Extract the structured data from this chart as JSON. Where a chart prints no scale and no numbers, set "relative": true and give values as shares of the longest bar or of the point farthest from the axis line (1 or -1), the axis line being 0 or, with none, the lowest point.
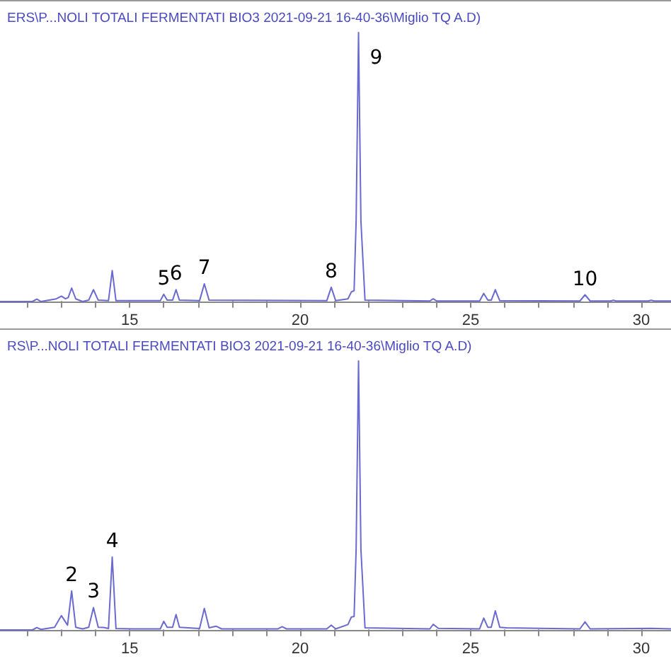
{
  "chart_data": [
    {
      "type": "line",
      "relative": true,
      "title": "ERS\\P...NOLI TOTALI FERMENTATI BIO3 2021-09-21 16-40-36\\Miglio TQ A.D)",
      "xlim": [
        11.2,
        30.87
      ],
      "xticks": [
        {
          "value": 12,
          "label": null
        },
        {
          "value": 13,
          "label": null
        },
        {
          "value": 14,
          "label": null
        },
        15,
        {
          "value": 16,
          "label": null
        },
        {
          "value": 17,
          "label": null
        },
        {
          "value": 18,
          "label": null
        },
        {
          "value": 19,
          "label": null
        },
        20,
        {
          "value": 21,
          "label": null
        },
        {
          "value": 22,
          "label": null
        },
        {
          "value": 23,
          "label": null
        },
        {
          "value": 24,
          "label": null
        },
        25,
        {
          "value": 26,
          "label": null
        },
        {
          "value": 27,
          "label": null
        },
        {
          "value": 28,
          "label": null
        },
        {
          "value": 29,
          "label": null
        },
        30
      ],
      "grid": false,
      "marker": "none",
      "line_style": "solid",
      "series": [
        {
          "color": "#6a6ad0",
          "x": [
            11.2,
            12.15,
            12.28,
            12.4,
            12.85,
            13.0,
            13.12,
            13.2,
            13.3,
            13.42,
            13.62,
            13.8,
            13.94,
            14.08,
            14.38,
            14.49,
            14.6,
            15.1,
            15.9,
            16.0,
            16.1,
            16.26,
            16.36,
            16.46,
            17.05,
            17.19,
            17.33,
            20.78,
            20.91,
            21.04,
            21.4,
            21.5,
            21.58,
            21.64,
            21.71,
            21.78,
            21.9,
            23.8,
            23.9,
            24.0,
            25.26,
            25.38,
            25.5,
            25.6,
            25.72,
            25.85,
            28.2,
            28.35,
            28.5,
            29.1,
            29.18,
            29.26,
            30.2,
            30.29,
            30.38,
            30.87
          ],
          "values": [
            0,
            0,
            0.009,
            0,
            0.01,
            0.02,
            0.01,
            0.015,
            0.05,
            0.01,
            0,
            0.005,
            0.044,
            0.005,
            0.003,
            0.115,
            0.003,
            0.003,
            0.003,
            0.027,
            0.005,
            0.005,
            0.044,
            0.005,
            0.003,
            0.066,
            0.005,
            0.003,
            0.053,
            0.003,
            0.01,
            0.036,
            0.04,
            0.3,
            1,
            0.3,
            0.005,
            0.002,
            0.01,
            0.002,
            0.002,
            0.03,
            0.005,
            0.005,
            0.044,
            0.003,
            0.002,
            0.025,
            0.002,
            0.002,
            0.005,
            0.002,
            0.002,
            0.005,
            0.002,
            0.002
          ]
        }
      ],
      "annotations": [
        {
          "text": "5",
          "x": 16.0,
          "y": 0.027
        },
        {
          "text": "6",
          "x": 16.36,
          "y": 0.044
        },
        {
          "text": "7",
          "x": 17.19,
          "y": 0.066
        },
        {
          "text": "8",
          "x": 20.91,
          "y": 0.053
        },
        {
          "text": "9",
          "x": 21.71,
          "y": 1
        },
        {
          "text": "10",
          "x": 28.35,
          "y": 0.025
        }
      ]
    },
    {
      "type": "line",
      "relative": true,
      "title": "RS\\P...NOLI TOTALI FERMENTATI BIO3 2021-09-21 16-40-36\\Miglio TQ A.D)",
      "xlim": [
        11.2,
        30.87
      ],
      "xticks": [
        {
          "value": 12,
          "label": null
        },
        {
          "value": 13,
          "label": null
        },
        {
          "value": 14,
          "label": null
        },
        15,
        {
          "value": 16,
          "label": null
        },
        {
          "value": 17,
          "label": null
        },
        {
          "value": 18,
          "label": null
        },
        {
          "value": 19,
          "label": null
        },
        20,
        {
          "value": 21,
          "label": null
        },
        {
          "value": 22,
          "label": null
        },
        {
          "value": 23,
          "label": null
        },
        {
          "value": 24,
          "label": null
        },
        25,
        {
          "value": 26,
          "label": null
        },
        {
          "value": 27,
          "label": null
        },
        {
          "value": 28,
          "label": null
        },
        {
          "value": 29,
          "label": null
        },
        30
      ],
      "grid": false,
      "marker": "none",
      "line_style": "solid",
      "series": [
        {
          "color": "#6a6ad0",
          "x": [
            11.2,
            12.15,
            12.28,
            12.4,
            12.8,
            13.0,
            13.18,
            13.3,
            13.42,
            13.62,
            13.8,
            13.94,
            14.08,
            14.24,
            14.38,
            14.49,
            14.6,
            15.1,
            15.9,
            16.0,
            16.1,
            16.26,
            16.36,
            16.46,
            17.05,
            17.19,
            17.33,
            17.53,
            17.7,
            19.35,
            19.47,
            19.6,
            20.78,
            20.91,
            21.04,
            21.4,
            21.5,
            21.58,
            21.64,
            21.71,
            21.78,
            21.9,
            23.8,
            23.9,
            24.05,
            25.26,
            25.38,
            25.5,
            25.6,
            25.72,
            25.85,
            26.05,
            28.2,
            28.35,
            28.5,
            30.29,
            30.87
          ],
          "values": [
            0,
            0,
            0.009,
            0.002,
            0.01,
            0.053,
            0.018,
            0.145,
            0.01,
            0.004,
            0.01,
            0.083,
            0.01,
            0.009,
            0.005,
            0.271,
            0.005,
            0.004,
            0.004,
            0.032,
            0.01,
            0.01,
            0.057,
            0.01,
            0.005,
            0.08,
            0.008,
            0.014,
            0.004,
            0.004,
            0.012,
            0.004,
            0.004,
            0.018,
            0.004,
            0.02,
            0.048,
            0.05,
            0.3,
            1,
            0.3,
            0.008,
            0.004,
            0.021,
            0.006,
            0.004,
            0.044,
            0.01,
            0.01,
            0.071,
            0.01,
            0.008,
            0.004,
            0.03,
            0.004,
            0.006,
            0.004
          ]
        }
      ],
      "annotations": [
        {
          "text": "2",
          "x": 13.3,
          "y": 0.145
        },
        {
          "text": "3",
          "x": 13.94,
          "y": 0.083
        },
        {
          "text": "4",
          "x": 14.49,
          "y": 0.271
        }
      ]
    }
  ]
}
